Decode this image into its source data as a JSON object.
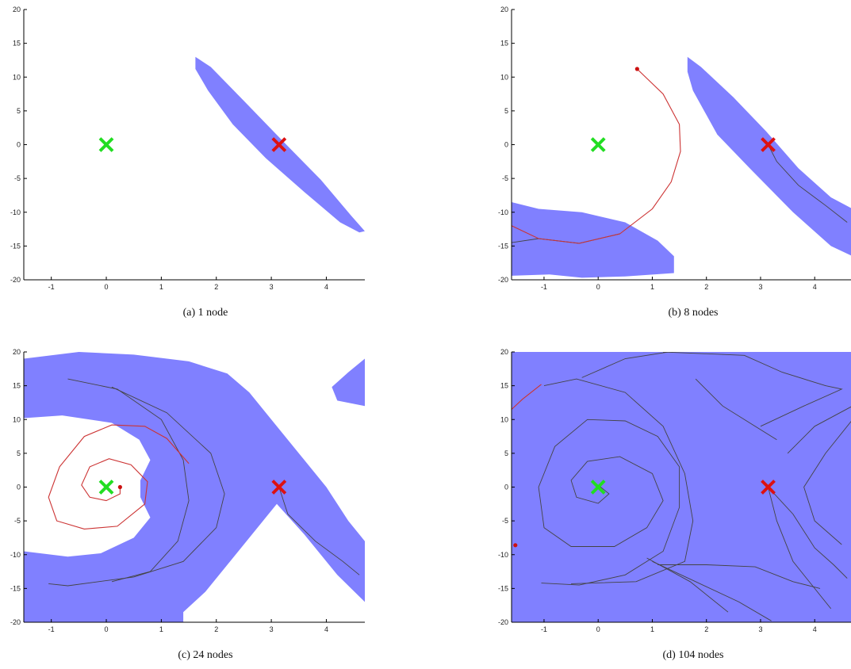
{
  "chart_data": [
    {
      "type": "scatter",
      "caption": "(a)  1 node",
      "xlim": [
        -1.5,
        4.7
      ],
      "ylim": [
        -20,
        20
      ],
      "xticks": [
        -1,
        0,
        1,
        2,
        3,
        4
      ],
      "yticks": [
        -20,
        -15,
        -10,
        -5,
        0,
        5,
        10,
        15,
        20
      ],
      "grid": false,
      "colors": {
        "region": "#8080ff",
        "trajectory": "#444444",
        "red_trajectory": "#cc3333",
        "start_marker": "#22dd22",
        "goal_marker": "#dd1111"
      },
      "markers": [
        {
          "kind": "start",
          "x": 0,
          "y": 0
        },
        {
          "kind": "goal",
          "x": 3.14,
          "y": 0
        }
      ],
      "regions": [
        [
          [
            1.62,
            13
          ],
          [
            1.9,
            11.5
          ],
          [
            2.5,
            6.5
          ],
          [
            3.2,
            0.6
          ],
          [
            3.9,
            -5.2
          ],
          [
            4.45,
            -10.5
          ],
          [
            4.7,
            -12.8
          ],
          [
            4.6,
            -13
          ],
          [
            4.25,
            -11.5
          ],
          [
            3.6,
            -7
          ],
          [
            2.9,
            -2
          ],
          [
            2.3,
            3
          ],
          [
            1.85,
            8
          ],
          [
            1.62,
            11.2
          ]
        ]
      ],
      "trajectories": [],
      "red_trajectories": [],
      "red_points": []
    },
    {
      "type": "scatter",
      "caption": "(b)  8 nodes",
      "xlim": [
        -1.6,
        4.7
      ],
      "ylim": [
        -20,
        20
      ],
      "xticks": [
        -1,
        0,
        1,
        2,
        3,
        4
      ],
      "yticks": [
        -20,
        -15,
        -10,
        -5,
        0,
        5,
        10,
        15,
        20
      ],
      "grid": false,
      "colors": {
        "region": "#8080ff",
        "trajectory": "#444444",
        "red_trajectory": "#cc3333",
        "start_marker": "#22dd22",
        "goal_marker": "#dd1111"
      },
      "markers": [
        {
          "kind": "start",
          "x": 0,
          "y": 0
        },
        {
          "kind": "goal",
          "x": 3.14,
          "y": 0
        }
      ],
      "regions": [
        [
          [
            1.65,
            13
          ],
          [
            1.9,
            11.5
          ],
          [
            2.5,
            7
          ],
          [
            3.1,
            2
          ],
          [
            3.7,
            -3.5
          ],
          [
            4.3,
            -7.8
          ],
          [
            4.7,
            -9.5
          ],
          [
            4.7,
            -16.5
          ],
          [
            4.3,
            -15
          ],
          [
            3.6,
            -10
          ],
          [
            2.8,
            -3.5
          ],
          [
            2.2,
            1.5
          ],
          [
            1.75,
            8
          ],
          [
            1.65,
            10.8
          ]
        ],
        [
          [
            -1.6,
            -8.5
          ],
          [
            -1.1,
            -9.5
          ],
          [
            -0.3,
            -10
          ],
          [
            0.5,
            -11.5
          ],
          [
            1.1,
            -14.2
          ],
          [
            1.4,
            -16.5
          ],
          [
            1.4,
            -19
          ],
          [
            0.5,
            -19.5
          ],
          [
            -0.3,
            -19.7
          ],
          [
            -0.9,
            -19.2
          ],
          [
            -1.6,
            -19.4
          ]
        ]
      ],
      "trajectories": [
        [
          [
            3.14,
            0
          ],
          [
            3.3,
            -2.5
          ],
          [
            3.7,
            -6
          ],
          [
            4.2,
            -9
          ],
          [
            4.6,
            -11.5
          ]
        ],
        [
          [
            -1.6,
            -14.5
          ],
          [
            -1.1,
            -13.9
          ],
          [
            -0.35,
            -14.6
          ],
          [
            0.4,
            -13.2
          ]
        ]
      ],
      "red_trajectories": [
        [
          [
            0.72,
            11.2
          ],
          [
            1.2,
            7.5
          ],
          [
            1.5,
            3
          ],
          [
            1.52,
            -1
          ],
          [
            1.35,
            -5.5
          ],
          [
            1.0,
            -9.5
          ],
          [
            0.4,
            -13.2
          ],
          [
            -0.35,
            -14.6
          ],
          [
            -1.1,
            -13.9
          ],
          [
            -1.6,
            -12
          ]
        ]
      ],
      "red_points": [
        {
          "x": 0.72,
          "y": 11.2
        }
      ]
    },
    {
      "type": "scatter",
      "caption": "(c)  24 nodes",
      "xlim": [
        -1.5,
        4.7
      ],
      "ylim": [
        -20,
        20
      ],
      "xticks": [
        -1,
        0,
        1,
        2,
        3,
        4
      ],
      "yticks": [
        -20,
        -15,
        -10,
        -5,
        0,
        5,
        10,
        15,
        20
      ],
      "grid": false,
      "colors": {
        "region": "#8080ff",
        "trajectory": "#444444",
        "red_trajectory": "#cc3333",
        "start_marker": "#22dd22",
        "goal_marker": "#dd1111"
      },
      "markers": [
        {
          "kind": "start",
          "x": 0,
          "y": 0
        },
        {
          "kind": "goal",
          "x": 3.14,
          "y": 0
        }
      ],
      "regions": [
        [
          [
            -1.5,
            19
          ],
          [
            -0.5,
            20
          ],
          [
            0.5,
            19.6
          ],
          [
            1.5,
            18.6
          ],
          [
            2.2,
            16.8
          ],
          [
            2.6,
            14
          ],
          [
            3.0,
            10
          ],
          [
            3.5,
            5
          ],
          [
            4.0,
            0
          ],
          [
            4.4,
            -5
          ],
          [
            4.7,
            -8
          ],
          [
            4.7,
            -17
          ],
          [
            4.2,
            -13
          ],
          [
            3.6,
            -7
          ],
          [
            3.1,
            -2.5
          ],
          [
            2.4,
            -9.5
          ],
          [
            1.8,
            -15.5
          ],
          [
            1.4,
            -18.5
          ],
          [
            1.4,
            -20
          ],
          [
            -1.5,
            -20
          ],
          [
            -1.5,
            -9.5
          ],
          [
            -0.7,
            -10.3
          ],
          [
            -0.1,
            -9.8
          ],
          [
            0.5,
            -7.5
          ],
          [
            0.8,
            -4.5
          ],
          [
            0.62,
            -1.5
          ],
          [
            0.62,
            1
          ],
          [
            0.8,
            4
          ],
          [
            0.6,
            7
          ],
          [
            0.1,
            9.5
          ],
          [
            -0.8,
            10.6
          ],
          [
            -1.5,
            10.2
          ]
        ],
        [
          [
            4.7,
            19
          ],
          [
            4.4,
            17
          ],
          [
            4.1,
            14.8
          ],
          [
            4.2,
            12.8
          ],
          [
            4.7,
            12
          ]
        ]
      ],
      "trajectories": [
        [
          [
            -0.7,
            16
          ],
          [
            0.2,
            14.5
          ],
          [
            1.0,
            10
          ],
          [
            1.4,
            4
          ],
          [
            1.5,
            -2
          ],
          [
            1.3,
            -8
          ],
          [
            0.8,
            -12.5
          ],
          [
            0.1,
            -14
          ]
        ],
        [
          [
            0.1,
            14.8
          ],
          [
            1.1,
            11
          ],
          [
            1.9,
            5
          ],
          [
            2.15,
            -1
          ],
          [
            2.0,
            -6
          ],
          [
            1.4,
            -11
          ],
          [
            0.5,
            -13.3
          ],
          [
            -0.7,
            -14.6
          ],
          [
            -1.05,
            -14.3
          ]
        ],
        [
          [
            3.14,
            0
          ],
          [
            3.3,
            -4
          ],
          [
            3.8,
            -8
          ],
          [
            4.3,
            -11
          ],
          [
            4.6,
            -13
          ]
        ]
      ],
      "red_trajectories": [
        [
          [
            0.25,
            0
          ],
          [
            0.25,
            -1
          ],
          [
            0.0,
            -2
          ],
          [
            -0.3,
            -1.5
          ],
          [
            -0.45,
            0.3
          ],
          [
            -0.3,
            3
          ],
          [
            0.05,
            4.2
          ],
          [
            0.45,
            3.3
          ],
          [
            0.75,
            0.8
          ],
          [
            0.7,
            -2.5
          ],
          [
            0.2,
            -5.8
          ],
          [
            -0.4,
            -6.2
          ],
          [
            -0.9,
            -5
          ],
          [
            -1.05,
            -1.5
          ],
          [
            -0.85,
            3
          ],
          [
            -0.4,
            7.5
          ],
          [
            0.1,
            9.2
          ],
          [
            0.7,
            9
          ],
          [
            1.1,
            7.2
          ],
          [
            1.5,
            3.5
          ]
        ]
      ],
      "red_points": [
        {
          "x": 0.25,
          "y": 0
        }
      ]
    },
    {
      "type": "scatter",
      "caption": "(d)  104 nodes",
      "xlim": [
        -1.6,
        4.7
      ],
      "ylim": [
        -20,
        20
      ],
      "xticks": [
        -1,
        0,
        1,
        2,
        3,
        4
      ],
      "yticks": [
        -20,
        -15,
        -10,
        -5,
        0,
        5,
        10,
        15,
        20
      ],
      "grid": false,
      "colors": {
        "region": "#8080ff",
        "trajectory": "#444444",
        "red_trajectory": "#cc3333",
        "start_marker": "#22dd22",
        "goal_marker": "#dd1111"
      },
      "markers": [
        {
          "kind": "start",
          "x": 0,
          "y": 0
        },
        {
          "kind": "goal",
          "x": 3.14,
          "y": 0
        }
      ],
      "regions": [
        [
          [
            -1.6,
            20
          ],
          [
            4.7,
            20
          ],
          [
            4.7,
            -20
          ],
          [
            -1.6,
            -20
          ]
        ]
      ],
      "trajectories": [
        [
          [
            0.0,
            0.3
          ],
          [
            0.2,
            -1
          ],
          [
            0.0,
            -2.4
          ],
          [
            -0.4,
            -1.5
          ],
          [
            -0.5,
            1
          ],
          [
            -0.2,
            3.8
          ],
          [
            0.4,
            4.5
          ],
          [
            1.0,
            2
          ],
          [
            1.2,
            -2
          ],
          [
            0.9,
            -6
          ],
          [
            0.3,
            -8.8
          ],
          [
            -0.5,
            -8.8
          ],
          [
            -1.0,
            -6
          ],
          [
            -1.1,
            0
          ],
          [
            -0.8,
            6
          ],
          [
            -0.2,
            10
          ],
          [
            0.5,
            9.8
          ],
          [
            1.1,
            7.5
          ],
          [
            1.5,
            3
          ],
          [
            1.5,
            -3
          ],
          [
            1.2,
            -9.5
          ],
          [
            0.5,
            -13
          ],
          [
            -0.35,
            -14.5
          ],
          [
            -1.05,
            -14.2
          ]
        ],
        [
          [
            -1.0,
            15
          ],
          [
            -0.4,
            16
          ],
          [
            0.5,
            14
          ],
          [
            1.2,
            9
          ],
          [
            1.6,
            2
          ],
          [
            1.75,
            -5
          ],
          [
            1.6,
            -11
          ],
          [
            0.7,
            -14
          ],
          [
            -0.5,
            -14.3
          ]
        ],
        [
          [
            -0.3,
            16.2
          ],
          [
            0.5,
            19
          ],
          [
            1.3,
            20
          ]
        ],
        [
          [
            1.2,
            20
          ],
          [
            2.7,
            19.5
          ],
          [
            3.4,
            17
          ],
          [
            4.2,
            15
          ],
          [
            4.5,
            14.5
          ],
          [
            3.8,
            12
          ],
          [
            3.0,
            9
          ]
        ],
        [
          [
            1.8,
            16
          ],
          [
            2.3,
            12
          ],
          [
            2.9,
            9
          ],
          [
            3.3,
            7
          ]
        ],
        [
          [
            3.14,
            0
          ],
          [
            3.6,
            -4
          ],
          [
            4.0,
            -9
          ],
          [
            4.35,
            -11.5
          ],
          [
            4.6,
            -13.5
          ]
        ],
        [
          [
            3.14,
            0
          ],
          [
            3.3,
            -5
          ],
          [
            3.6,
            -11
          ],
          [
            4.0,
            -15
          ],
          [
            4.3,
            -18
          ]
        ],
        [
          [
            3.5,
            5
          ],
          [
            4.0,
            9
          ],
          [
            4.7,
            12
          ]
        ],
        [
          [
            4.7,
            10
          ],
          [
            4.2,
            5
          ],
          [
            3.8,
            0
          ],
          [
            4.0,
            -5
          ],
          [
            4.5,
            -8.5
          ]
        ],
        [
          [
            1.0,
            -11
          ],
          [
            1.8,
            -14
          ],
          [
            2.6,
            -17
          ],
          [
            3.2,
            -19.8
          ]
        ],
        [
          [
            1.1,
            -11.5
          ],
          [
            2.0,
            -11.5
          ],
          [
            2.9,
            -11.8
          ],
          [
            3.6,
            -14
          ],
          [
            4.1,
            -15
          ]
        ],
        [
          [
            0.9,
            -10.5
          ],
          [
            1.7,
            -14
          ],
          [
            2.4,
            -18.5
          ]
        ]
      ],
      "red_trajectories": [
        [
          [
            -1.6,
            11.5
          ],
          [
            -1.4,
            13
          ],
          [
            -1.05,
            15.2
          ]
        ]
      ],
      "red_points": [
        {
          "x": -1.53,
          "y": -8.6
        }
      ]
    }
  ],
  "captions": [
    "(a)  1 node",
    "(b)  8 nodes",
    "(c)  24 nodes",
    "(d)  104 nodes"
  ]
}
